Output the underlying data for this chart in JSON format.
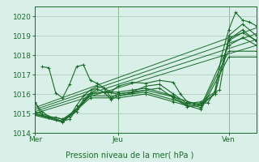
{
  "title": "",
  "xlabel": "Pression niveau de la mer( hPa )",
  "ylabel": "",
  "bg_color": "#d8f0e8",
  "grid_color": "#a8c8b0",
  "line_color": "#1a6b2a",
  "ylim": [
    1014,
    1020.5
  ],
  "xlim": [
    0,
    96
  ],
  "xticks": [
    0,
    36,
    84
  ],
  "xtick_labels": [
    "Mer",
    "Jeu",
    "Ven"
  ],
  "yticks": [
    1014,
    1015,
    1016,
    1017,
    1018,
    1019,
    1020
  ],
  "series": [
    [
      0,
      1015.6,
      3,
      1014.9,
      6,
      1014.8,
      9,
      1014.8,
      12,
      1014.7,
      15,
      1014.85,
      18,
      1015.4,
      21,
      1015.9,
      24,
      1016.2,
      27,
      1016.4,
      30,
      1016.3,
      33,
      1015.8,
      36,
      1016.0,
      42,
      1016.1,
      48,
      1016.4,
      54,
      1016.5,
      60,
      1016.0,
      66,
      1015.5,
      72,
      1015.6,
      78,
      1016.1,
      80,
      1016.2,
      84,
      1019.0,
      90,
      1019.6,
      96,
      1019.0
    ],
    [
      0,
      1015.1,
      6,
      1014.85,
      12,
      1014.7,
      18,
      1015.2,
      24,
      1016.0,
      30,
      1016.1,
      36,
      1016.1,
      42,
      1016.2,
      48,
      1016.3,
      60,
      1015.9,
      66,
      1015.4,
      72,
      1015.5,
      78,
      1016.0,
      84,
      1018.8,
      90,
      1019.3,
      96,
      1018.7
    ],
    [
      0,
      1015.0,
      6,
      1014.8,
      12,
      1014.6,
      18,
      1015.1,
      24,
      1016.0,
      30,
      1016.1,
      36,
      1016.0,
      48,
      1016.2,
      60,
      1015.85,
      72,
      1015.4,
      84,
      1018.5,
      90,
      1018.9,
      96,
      1018.5
    ],
    [
      0,
      1014.95,
      12,
      1014.6,
      24,
      1015.9,
      36,
      1015.9,
      48,
      1016.1,
      60,
      1015.7,
      72,
      1015.3,
      84,
      1018.2,
      96,
      1018.2
    ],
    [
      0,
      1014.9,
      12,
      1014.55,
      24,
      1015.8,
      36,
      1015.8,
      48,
      1016.0,
      60,
      1015.6,
      72,
      1015.2,
      84,
      1017.9,
      96,
      1017.9
    ],
    [
      3,
      1017.4,
      6,
      1017.35,
      9,
      1016.05,
      12,
      1015.8,
      15,
      1016.5,
      18,
      1017.4,
      21,
      1017.5,
      24,
      1016.7,
      27,
      1016.55,
      30,
      1016.3,
      33,
      1016.1,
      36,
      1016.4,
      42,
      1016.6,
      48,
      1016.55,
      54,
      1016.7,
      60,
      1016.6,
      63,
      1016.0,
      66,
      1015.6,
      69,
      1015.5,
      72,
      1015.5,
      75,
      1015.55,
      78,
      1016.15,
      81,
      1018.0,
      84,
      1019.3,
      87,
      1020.2,
      90,
      1019.8,
      93,
      1019.7,
      96,
      1019.5
    ],
    [
      0,
      1015.55,
      3,
      1015.1,
      6,
      1014.85,
      9,
      1014.65,
      12,
      1014.6,
      15,
      1014.7,
      18,
      1015.2,
      21,
      1015.7,
      24,
      1016.05,
      27,
      1016.25,
      30,
      1016.1,
      33,
      1015.7,
      36,
      1015.9,
      42,
      1016.05,
      48,
      1016.2,
      54,
      1016.3,
      60,
      1015.8,
      66,
      1015.35,
      72,
      1015.4,
      78,
      1016.0,
      84,
      1018.75,
      90,
      1019.15,
      96,
      1018.75
    ]
  ],
  "trend_lines": [
    {
      "x": [
        0,
        96
      ],
      "y": [
        1015.0,
        1018.5
      ]
    },
    {
      "x": [
        0,
        96
      ],
      "y": [
        1015.1,
        1018.8
      ]
    },
    {
      "x": [
        0,
        96
      ],
      "y": [
        1015.2,
        1019.1
      ]
    },
    {
      "x": [
        0,
        96
      ],
      "y": [
        1015.3,
        1019.4
      ]
    }
  ],
  "figsize": [
    3.2,
    2.0
  ],
  "dpi": 100
}
